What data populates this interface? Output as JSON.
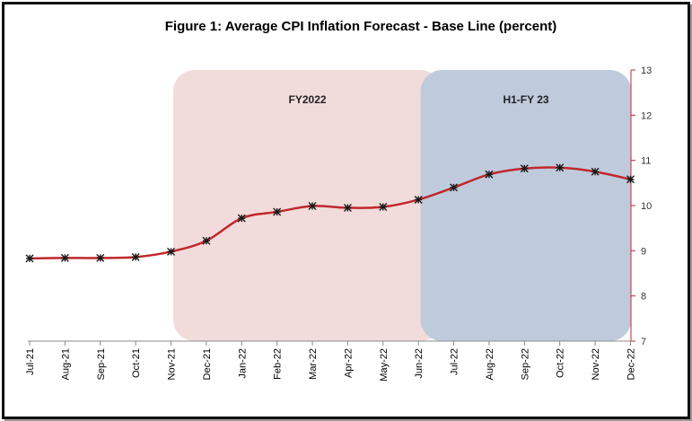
{
  "chart_data": {
    "type": "line",
    "title": "Figure 1: Average CPI Inflation Forecast - Base Line (percent)",
    "xlabel": "",
    "ylabel": "",
    "categories": [
      "Jul-21",
      "Aug-21",
      "Sep-21",
      "Oct-21",
      "Nov-21",
      "Dec-21",
      "Jan-22",
      "Feb-22",
      "Mar-22",
      "Apr-22",
      "May-22",
      "Jun-22",
      "Jul-22",
      "Aug-22",
      "Sep-22",
      "Oct-22",
      "Nov-22",
      "Dec-22"
    ],
    "series": [
      {
        "values": [
          8.83,
          8.84,
          8.84,
          8.86,
          8.98,
          9.22,
          9.72,
          9.86,
          9.99,
          9.95,
          9.97,
          10.13,
          10.4,
          10.69,
          10.82,
          10.84,
          10.75,
          10.58
        ]
      }
    ],
    "ylim": [
      7,
      13
    ],
    "yticks": [
      "7",
      "8",
      "9",
      "10",
      "11",
      "12",
      "13"
    ],
    "y_axis_side": "right",
    "grid": false,
    "legend": "none",
    "regions": [
      {
        "label": "FY2022",
        "start": "Dec-21",
        "end": "Jun-22",
        "color": "#f2dbdb"
      },
      {
        "label": "H1-FY 23",
        "start": "Jul-22",
        "end": "Dec-22",
        "color": "#bfcbdc"
      }
    ],
    "colors": {
      "line": "#c0282c",
      "marker": "#1a1a1a",
      "axis": "#c0282c",
      "x_axis": "#888888"
    }
  }
}
